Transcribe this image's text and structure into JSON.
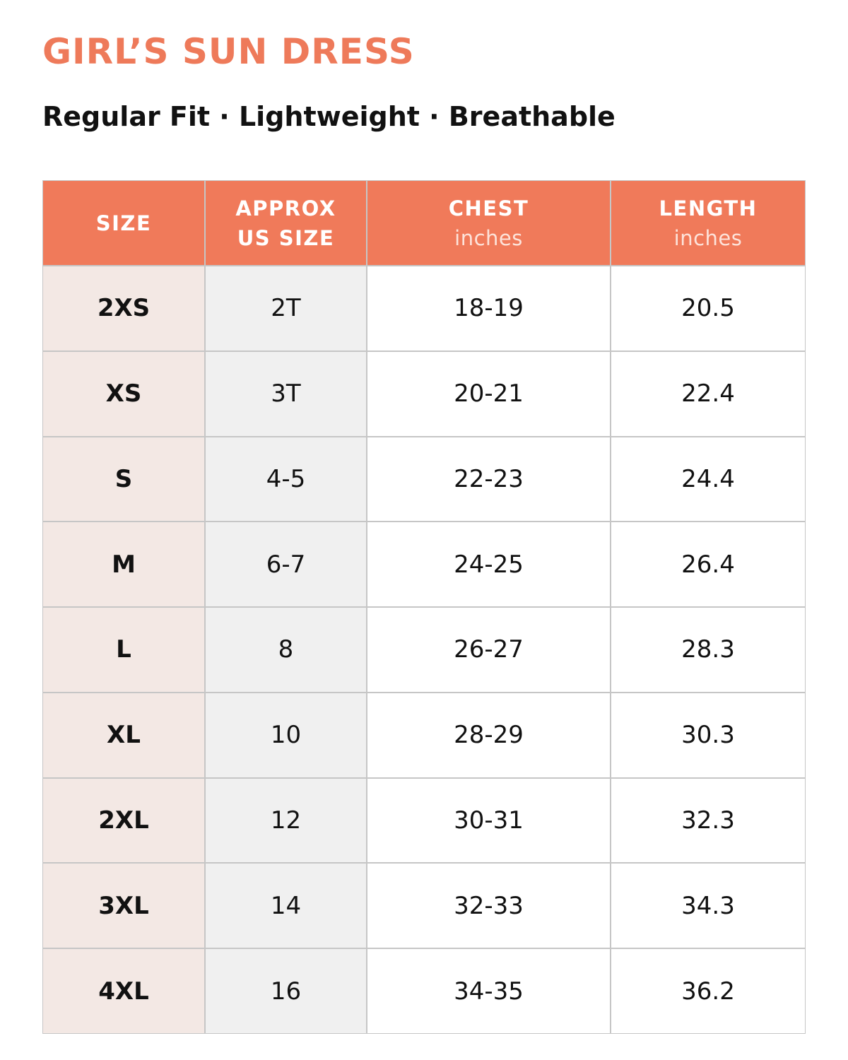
{
  "header": {
    "title": "GIRL’S SUN DRESS",
    "subtitle": "Regular Fit · Lightweight · Breathable"
  },
  "table": {
    "columns": [
      {
        "lines": [
          "SIZE"
        ]
      },
      {
        "lines": [
          "APPROX",
          "US SIZE"
        ]
      },
      {
        "lines": [
          "CHEST"
        ],
        "unit": "inches"
      },
      {
        "lines": [
          "LENGTH"
        ],
        "unit": "inches"
      }
    ],
    "rows": [
      [
        "2XS",
        "2T",
        "18-19",
        "20.5"
      ],
      [
        "XS",
        "3T",
        "20-21",
        "22.4"
      ],
      [
        "S",
        "4-5",
        "22-23",
        "24.4"
      ],
      [
        "M",
        "6-7",
        "24-25",
        "26.4"
      ],
      [
        "L",
        "8",
        "26-27",
        "28.3"
      ],
      [
        "XL",
        "10",
        "28-29",
        "30.3"
      ],
      [
        "2XL",
        "12",
        "30-31",
        "32.3"
      ],
      [
        "3XL",
        "14",
        "32-33",
        "34.3"
      ],
      [
        "4XL",
        "16",
        "34-35",
        "36.2"
      ]
    ]
  }
}
